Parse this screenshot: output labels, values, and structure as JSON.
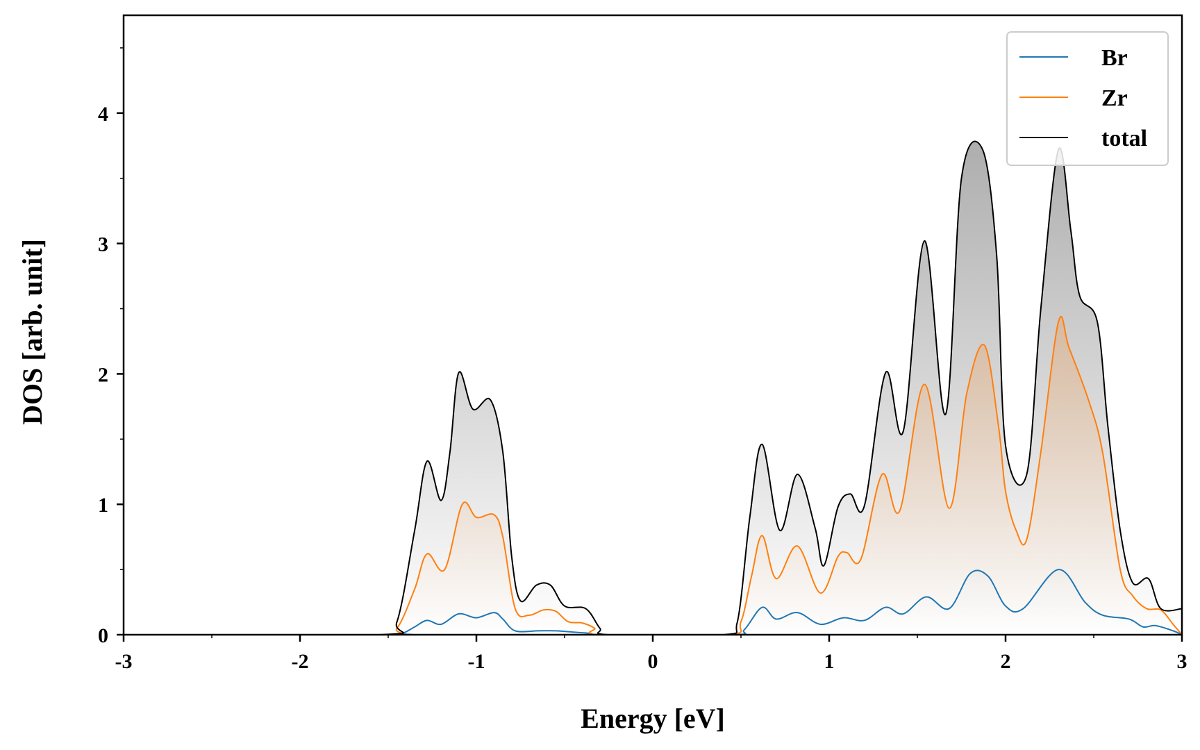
{
  "chart_data": {
    "type": "line",
    "title": "",
    "xlabel": "Energy [eV]",
    "ylabel": "DOS [arb. unit]",
    "xlim": [
      -3,
      3
    ],
    "ylim": [
      0,
      4.75
    ],
    "xticks": [
      -3,
      -2,
      -1,
      0,
      1,
      2,
      3
    ],
    "xtick_labels": [
      "-3",
      "-2",
      "-1",
      "0",
      "1",
      "2",
      "3"
    ],
    "yticks": [
      0,
      1,
      2,
      3,
      4
    ],
    "ytick_labels": [
      "0",
      "1",
      "2",
      "3",
      "4"
    ],
    "grid": false,
    "legend_position": "top-right",
    "fill": "gradient-under-curve",
    "series": [
      {
        "name": "Br",
        "color": "#1f77b4",
        "points": [
          [
            -3,
            0
          ],
          [
            -1.5,
            0
          ],
          [
            -1.42,
            0.01
          ],
          [
            -1.35,
            0.06
          ],
          [
            -1.28,
            0.11
          ],
          [
            -1.2,
            0.08
          ],
          [
            -1.1,
            0.16
          ],
          [
            -1.0,
            0.13
          ],
          [
            -0.9,
            0.17
          ],
          [
            -0.85,
            0.12
          ],
          [
            -0.78,
            0.03
          ],
          [
            -0.65,
            0.03
          ],
          [
            -0.55,
            0.03
          ],
          [
            -0.45,
            0.02
          ],
          [
            -0.35,
            0.01
          ],
          [
            -0.3,
            0
          ],
          [
            0.45,
            0
          ],
          [
            0.52,
            0.04
          ],
          [
            0.62,
            0.21
          ],
          [
            0.7,
            0.12
          ],
          [
            0.82,
            0.17
          ],
          [
            0.95,
            0.08
          ],
          [
            1.08,
            0.13
          ],
          [
            1.2,
            0.11
          ],
          [
            1.32,
            0.21
          ],
          [
            1.42,
            0.16
          ],
          [
            1.55,
            0.29
          ],
          [
            1.68,
            0.2
          ],
          [
            1.8,
            0.47
          ],
          [
            1.9,
            0.45
          ],
          [
            2.0,
            0.22
          ],
          [
            2.1,
            0.2
          ],
          [
            2.3,
            0.5
          ],
          [
            2.45,
            0.25
          ],
          [
            2.55,
            0.15
          ],
          [
            2.7,
            0.12
          ],
          [
            2.78,
            0.06
          ],
          [
            2.85,
            0.07
          ],
          [
            2.95,
            0.03
          ],
          [
            3.0,
            0
          ]
        ]
      },
      {
        "name": "Zr",
        "color": "#ff7f0e",
        "points": [
          [
            -3,
            0
          ],
          [
            -1.55,
            0
          ],
          [
            -1.45,
            0.05
          ],
          [
            -1.35,
            0.35
          ],
          [
            -1.28,
            0.62
          ],
          [
            -1.18,
            0.5
          ],
          [
            -1.08,
            1.0
          ],
          [
            -1.0,
            0.9
          ],
          [
            -0.9,
            0.92
          ],
          [
            -0.85,
            0.75
          ],
          [
            -0.78,
            0.2
          ],
          [
            -0.7,
            0.15
          ],
          [
            -0.62,
            0.19
          ],
          [
            -0.55,
            0.18
          ],
          [
            -0.48,
            0.1
          ],
          [
            -0.4,
            0.09
          ],
          [
            -0.33,
            0.05
          ],
          [
            -0.3,
            0
          ],
          [
            0.42,
            0
          ],
          [
            0.5,
            0.1
          ],
          [
            0.56,
            0.45
          ],
          [
            0.62,
            0.76
          ],
          [
            0.7,
            0.43
          ],
          [
            0.82,
            0.68
          ],
          [
            0.95,
            0.32
          ],
          [
            1.05,
            0.6
          ],
          [
            1.1,
            0.63
          ],
          [
            1.18,
            0.58
          ],
          [
            1.3,
            1.23
          ],
          [
            1.4,
            0.95
          ],
          [
            1.54,
            1.92
          ],
          [
            1.68,
            0.97
          ],
          [
            1.78,
            1.85
          ],
          [
            1.88,
            2.22
          ],
          [
            1.96,
            1.6
          ],
          [
            2.0,
            1.1
          ],
          [
            2.06,
            0.8
          ],
          [
            2.12,
            0.73
          ],
          [
            2.2,
            1.4
          ],
          [
            2.3,
            2.4
          ],
          [
            2.36,
            2.2
          ],
          [
            2.47,
            1.8
          ],
          [
            2.55,
            1.4
          ],
          [
            2.65,
            0.5
          ],
          [
            2.72,
            0.3
          ],
          [
            2.8,
            0.2
          ],
          [
            2.88,
            0.19
          ],
          [
            2.95,
            0.08
          ],
          [
            3.0,
            0
          ]
        ]
      },
      {
        "name": "total",
        "color": "#000000",
        "points": [
          [
            -3,
            0
          ],
          [
            -1.55,
            0
          ],
          [
            -1.45,
            0.1
          ],
          [
            -1.35,
            0.8
          ],
          [
            -1.28,
            1.33
          ],
          [
            -1.2,
            1.03
          ],
          [
            -1.15,
            1.4
          ],
          [
            -1.1,
            2.01
          ],
          [
            -1.02,
            1.73
          ],
          [
            -0.92,
            1.8
          ],
          [
            -0.85,
            1.4
          ],
          [
            -0.8,
            0.6
          ],
          [
            -0.75,
            0.26
          ],
          [
            -0.66,
            0.38
          ],
          [
            -0.58,
            0.38
          ],
          [
            -0.5,
            0.22
          ],
          [
            -0.38,
            0.2
          ],
          [
            -0.3,
            0.05
          ],
          [
            -0.25,
            0
          ],
          [
            0.4,
            0
          ],
          [
            0.48,
            0.1
          ],
          [
            0.55,
            0.9
          ],
          [
            0.62,
            1.46
          ],
          [
            0.72,
            0.8
          ],
          [
            0.82,
            1.23
          ],
          [
            0.92,
            0.82
          ],
          [
            0.97,
            0.53
          ],
          [
            1.05,
            0.98
          ],
          [
            1.12,
            1.08
          ],
          [
            1.2,
            0.99
          ],
          [
            1.32,
            2.01
          ],
          [
            1.42,
            1.56
          ],
          [
            1.54,
            3.02
          ],
          [
            1.66,
            1.69
          ],
          [
            1.75,
            3.5
          ],
          [
            1.87,
            3.72
          ],
          [
            1.95,
            2.9
          ],
          [
            2.0,
            1.45
          ],
          [
            2.12,
            1.23
          ],
          [
            2.2,
            2.5
          ],
          [
            2.3,
            3.72
          ],
          [
            2.37,
            3.1
          ],
          [
            2.42,
            2.6
          ],
          [
            2.52,
            2.4
          ],
          [
            2.58,
            1.6
          ],
          [
            2.65,
            0.8
          ],
          [
            2.72,
            0.4
          ],
          [
            2.81,
            0.43
          ],
          [
            2.88,
            0.2
          ],
          [
            3.0,
            0.2
          ]
        ]
      }
    ]
  }
}
